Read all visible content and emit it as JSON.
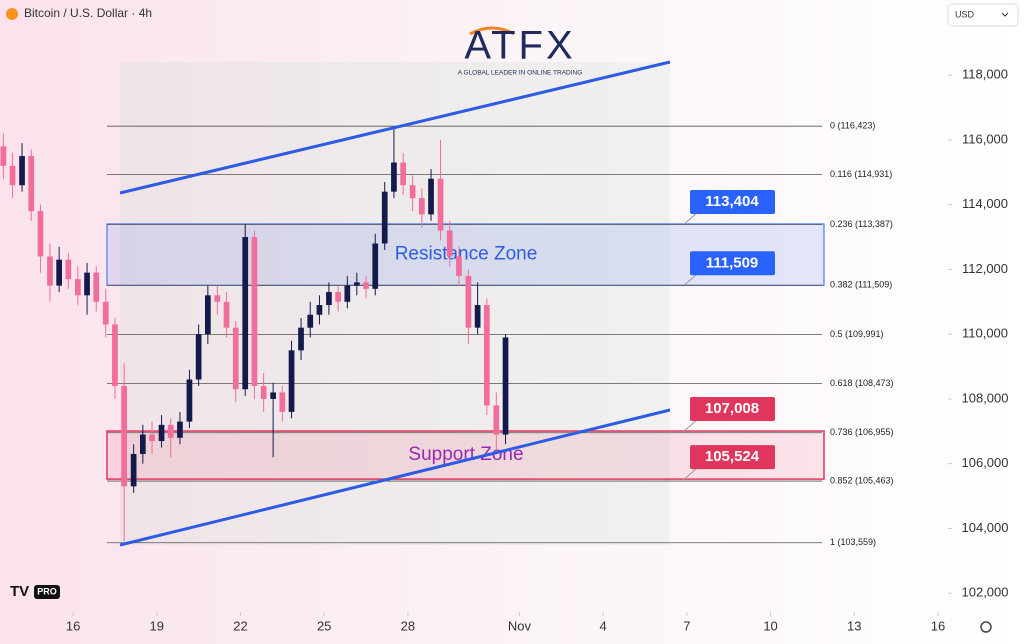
{
  "header": {
    "symbol": "Bitcoin / U.S. Dollar · 4h",
    "currency": "USD"
  },
  "logo": {
    "brand": "ATFX",
    "tagline": "A GLOBAL LEADER IN ONLINE TRADING"
  },
  "tv_badge": "PRO",
  "chart_data": {
    "type": "candlestick",
    "x": [
      13.5,
      13.83,
      14.17,
      14.5,
      14.83,
      15.17,
      15.5,
      15.83,
      16.17,
      16.5,
      16.83,
      17.17,
      17.5,
      17.83,
      18.17,
      18.5,
      18.83,
      19.17,
      19.5,
      19.83,
      20.17,
      20.5,
      20.83,
      21.17,
      21.5,
      21.83,
      22.17,
      22.5,
      22.83,
      23.17,
      23.5,
      23.83,
      24.17,
      24.5,
      24.83,
      25.17,
      25.5,
      25.83,
      26.17,
      26.5,
      26.83,
      27.17,
      27.5,
      27.83,
      28.17,
      28.5,
      28.83,
      29.17,
      29.5,
      29.83,
      30.17,
      30.5,
      30.83,
      31.17,
      31.5
    ],
    "open": [
      115800,
      115200,
      114600,
      115500,
      113800,
      112400,
      111500,
      112300,
      111700,
      111200,
      111900,
      111000,
      110300,
      108400,
      105300,
      106300,
      106900,
      106700,
      107200,
      106800,
      107300,
      108600,
      110000,
      111200,
      111000,
      110200,
      108300,
      113000,
      108400,
      108000,
      108200,
      107600,
      109500,
      110200,
      110600,
      110900,
      111300,
      111000,
      111500,
      111600,
      111400,
      112800,
      114400,
      115300,
      114600,
      114200,
      113700,
      114800,
      113200,
      112400,
      111800,
      110200,
      110900,
      107800,
      106900
    ],
    "high": [
      116200,
      115600,
      115900,
      115700,
      114000,
      112800,
      112700,
      112500,
      112100,
      112200,
      112100,
      111400,
      110500,
      109100,
      106600,
      107200,
      107300,
      107500,
      107400,
      107600,
      108900,
      110300,
      111500,
      111500,
      111300,
      110400,
      113400,
      113200,
      108800,
      108500,
      108400,
      109800,
      110500,
      111000,
      111200,
      111600,
      111500,
      111800,
      111900,
      111800,
      113100,
      114700,
      116423,
      115600,
      114900,
      114500,
      115100,
      116000,
      113500,
      112700,
      112000,
      111600,
      111100,
      108200,
      110000
    ],
    "low": [
      114800,
      114200,
      114400,
      113500,
      111900,
      111000,
      111300,
      111400,
      110900,
      110600,
      110700,
      109900,
      108000,
      103600,
      105100,
      106000,
      106300,
      106500,
      106200,
      106600,
      107100,
      108400,
      109700,
      110600,
      109900,
      107900,
      108100,
      108000,
      107600,
      106200,
      107300,
      107400,
      109200,
      109900,
      110300,
      110600,
      110700,
      110800,
      111200,
      111100,
      111200,
      112600,
      114200,
      114300,
      113800,
      113300,
      113500,
      112900,
      112100,
      111500,
      109700,
      110000,
      107500,
      106400,
      106600
    ],
    "close": [
      115200,
      114600,
      115500,
      113800,
      112400,
      111500,
      112300,
      111700,
      111200,
      111900,
      111000,
      110300,
      108400,
      105300,
      106300,
      106900,
      106700,
      107200,
      106800,
      107300,
      108600,
      110000,
      111200,
      111000,
      110200,
      108300,
      113000,
      108400,
      108000,
      108200,
      107600,
      109500,
      110200,
      110600,
      110900,
      111300,
      111000,
      111500,
      111600,
      111400,
      112800,
      114400,
      115300,
      114600,
      114200,
      113700,
      114800,
      113200,
      112400,
      111800,
      110200,
      110900,
      107800,
      106900,
      109900
    ],
    "up_color": "#141a4b",
    "down_color": "#f06d9c",
    "xlim": [
      13.38,
      47.36
    ],
    "xticks": [
      16,
      19,
      22,
      25,
      28,
      {
        "value": 32,
        "label": "Nov"
      },
      {
        "value": 35,
        "label": "4"
      },
      {
        "value": 38,
        "label": "7"
      },
      {
        "value": 41,
        "label": "10"
      },
      {
        "value": 44,
        "label": "13"
      },
      {
        "value": 47,
        "label": "16"
      }
    ],
    "ylim": [
      101420,
      120320
    ],
    "yticks": [
      {
        "value": 102000,
        "label": "102,000"
      },
      {
        "value": 104000,
        "label": "104,000"
      },
      {
        "value": 106000,
        "label": "106,000"
      },
      {
        "value": 108000,
        "label": "108,000"
      },
      {
        "value": 110000,
        "label": "110,000"
      },
      {
        "value": 112000,
        "label": "112,000"
      },
      {
        "value": 114000,
        "label": "114,000"
      },
      {
        "value": 116000,
        "label": "116,000"
      },
      {
        "value": 118000,
        "label": "118,000"
      }
    ],
    "fib_levels": [
      {
        "value": 116423,
        "label": "0 (116,423)"
      },
      {
        "value": 114931,
        "label": "0.116 (114,931)"
      },
      {
        "value": 113387,
        "label": "0.236 (113,387)"
      },
      {
        "value": 111509,
        "label": "0.382 (111,509)"
      },
      {
        "value": 109991,
        "label": "0.5 (109,991)"
      },
      {
        "value": 108473,
        "label": "0.618 (108,473)"
      },
      {
        "value": 106955,
        "label": "0.736 (106,955)"
      },
      {
        "value": 105463,
        "label": "0.852 (105,463)"
      },
      {
        "value": 103559,
        "label": "1 (103,559)"
      }
    ],
    "zones": [
      {
        "name": "Resistance Zone",
        "high": 113404,
        "low": 111509,
        "value_labels": [
          "113,404",
          "111,509"
        ],
        "color": "#2962ff",
        "fill": "rgba(120,150,235,0.2)",
        "text_color": "#2d5be3"
      },
      {
        "name": "Support Zone",
        "high": 107008,
        "low": 105524,
        "value_labels": [
          "107,008",
          "105,524"
        ],
        "color": "#e0355c",
        "fill": "rgba(240,120,150,0.18)",
        "text_color": "#9c27b0"
      }
    ]
  }
}
